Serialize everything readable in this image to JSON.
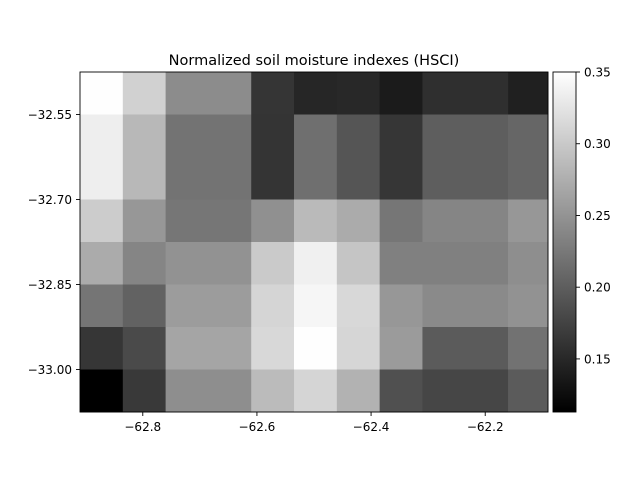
{
  "chart_data": {
    "type": "heatmap",
    "title": "Normalized soil moisture indexes (HSCI)",
    "xlabel": "",
    "ylabel": "",
    "colormap": "gray",
    "x_range": [
      -62.91,
      -62.09
    ],
    "y_range": [
      -33.075,
      -32.475
    ],
    "x_ticks": [
      {
        "value": -62.8,
        "label": "−62.8"
      },
      {
        "value": -62.6,
        "label": "−62.6"
      },
      {
        "value": -62.4,
        "label": "−62.4"
      },
      {
        "value": -62.2,
        "label": "−62.2"
      }
    ],
    "y_ticks": [
      {
        "value": -32.55,
        "label": "−32.55"
      },
      {
        "value": -32.7,
        "label": "−32.70"
      },
      {
        "value": -32.85,
        "label": "−32.85"
      },
      {
        "value": -33.0,
        "label": "−33.00"
      }
    ],
    "colorbar": {
      "range": [
        0.113,
        0.35
      ],
      "ticks": [
        {
          "value": 0.15,
          "label": "0.15"
        },
        {
          "value": 0.2,
          "label": "0.20"
        },
        {
          "value": 0.25,
          "label": "0.25"
        },
        {
          "value": 0.3,
          "label": "0.30"
        },
        {
          "value": 0.35,
          "label": "0.35"
        }
      ]
    },
    "columns": [
      {
        "x0": -62.91,
        "x1": -62.835
      },
      {
        "x0": -62.835,
        "x1": -62.76
      },
      {
        "x0": -62.76,
        "x1": -62.61
      },
      {
        "x0": -62.61,
        "x1": -62.535
      },
      {
        "x0": -62.535,
        "x1": -62.46
      },
      {
        "x0": -62.46,
        "x1": -62.385
      },
      {
        "x0": -62.385,
        "x1": -62.31
      },
      {
        "x0": -62.31,
        "x1": -62.16
      },
      {
        "x0": -62.16,
        "x1": -62.09
      }
    ],
    "rows": [
      {
        "y0": -32.475,
        "y1": -32.55
      },
      {
        "y0": -32.55,
        "y1": -32.625
      },
      {
        "y0": -32.625,
        "y1": -32.7
      },
      {
        "y0": -32.7,
        "y1": -32.775
      },
      {
        "y0": -32.775,
        "y1": -32.85
      },
      {
        "y0": -32.85,
        "y1": -32.925
      },
      {
        "y0": -32.925,
        "y1": -33.0
      },
      {
        "y0": -33.0,
        "y1": -33.075
      }
    ],
    "values": [
      [
        0.349,
        0.307,
        0.243,
        0.162,
        0.148,
        0.15,
        0.138,
        0.157,
        0.143
      ],
      [
        0.334,
        0.284,
        0.22,
        0.161,
        0.216,
        0.192,
        0.163,
        0.2,
        0.208
      ],
      [
        0.334,
        0.284,
        0.22,
        0.161,
        0.216,
        0.192,
        0.163,
        0.2,
        0.208
      ],
      [
        0.303,
        0.253,
        0.223,
        0.247,
        0.286,
        0.272,
        0.223,
        0.237,
        0.253
      ],
      [
        0.272,
        0.237,
        0.249,
        0.301,
        0.336,
        0.296,
        0.232,
        0.232,
        0.245
      ],
      [
        0.222,
        0.204,
        0.258,
        0.311,
        0.342,
        0.314,
        0.253,
        0.241,
        0.249
      ],
      [
        0.163,
        0.182,
        0.266,
        0.314,
        0.349,
        0.312,
        0.257,
        0.198,
        0.219
      ],
      [
        0.113,
        0.166,
        0.245,
        0.287,
        0.311,
        0.278,
        0.187,
        0.178,
        0.198
      ]
    ]
  }
}
